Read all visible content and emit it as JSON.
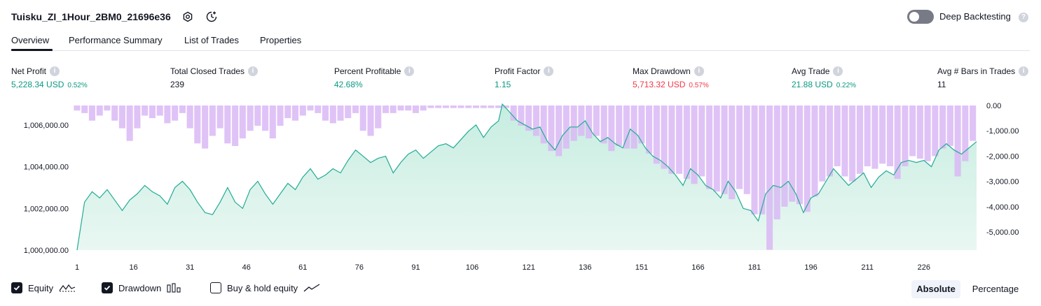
{
  "header": {
    "strategy_title": "Tuisku_ZI_1Hour_2BM0_21696e36",
    "icons": [
      "gear-icon",
      "replay-icon"
    ],
    "deep_backtesting": {
      "label": "Deep Backtesting",
      "enabled": false
    }
  },
  "tabs": [
    {
      "label": "Overview",
      "active": true
    },
    {
      "label": "Performance Summary",
      "active": false
    },
    {
      "label": "List of Trades",
      "active": false
    },
    {
      "label": "Properties",
      "active": false
    }
  ],
  "metrics": [
    {
      "label": "Net Profit",
      "value": "5,228.34 USD",
      "sub": "0.52%",
      "tone": "pos"
    },
    {
      "label": "Total Closed Trades",
      "value": "239",
      "sub": "",
      "tone": "neu"
    },
    {
      "label": "Percent Profitable",
      "value": "42.68%",
      "sub": "",
      "tone": "pos"
    },
    {
      "label": "Profit Factor",
      "value": "1.15",
      "sub": "",
      "tone": "pos"
    },
    {
      "label": "Max Drawdown",
      "value": "5,713.32 USD",
      "sub": "0.57%",
      "tone": "neg"
    },
    {
      "label": "Avg Trade",
      "value": "21.88 USD",
      "sub": "0.22%",
      "tone": "pos"
    },
    {
      "label": "Avg # Bars in Trades",
      "value": "11",
      "sub": "",
      "tone": "neu"
    }
  ],
  "legend": {
    "equity": {
      "label": "Equity",
      "checked": true
    },
    "drawdown": {
      "label": "Drawdown",
      "checked": true
    },
    "buy_hold": {
      "label": "Buy & hold equity",
      "checked": false
    }
  },
  "scale_toggle": {
    "absolute": "Absolute",
    "percentage": "Percentage",
    "selected": "absolute"
  },
  "colors": {
    "equity_line": "#22ab94",
    "equity_fill": "#d4f2ea",
    "drawdown_bar": "#d9b8f5",
    "text": "#131722",
    "positive": "#089981",
    "negative": "#f23645"
  },
  "chart_data": {
    "type": "line+bar",
    "x_ticks": [
      "1",
      "16",
      "31",
      "46",
      "61",
      "76",
      "91",
      "106",
      "121",
      "136",
      "151",
      "166",
      "181",
      "196",
      "211",
      "226"
    ],
    "x_range": [
      1,
      240
    ],
    "left_axis": {
      "ticks": [
        "1,000,000.00",
        "1,002,000.00",
        "1,004,000.00",
        "1,006,000.00"
      ],
      "range": [
        1000000,
        1007200
      ]
    },
    "right_axis": {
      "ticks": [
        "0.00",
        "-1,000.00",
        "-2,000.00",
        "-3,000.00",
        "-4,000.00",
        "-5,000.00"
      ],
      "range": [
        -5713,
        0
      ]
    },
    "series": [
      {
        "name": "Equity",
        "axis": "left",
        "points": [
          [
            1,
            1000000
          ],
          [
            3,
            1002300
          ],
          [
            5,
            1002800
          ],
          [
            7,
            1002500
          ],
          [
            9,
            1002900
          ],
          [
            11,
            1002400
          ],
          [
            13,
            1001900
          ],
          [
            15,
            1002400
          ],
          [
            17,
            1002700
          ],
          [
            19,
            1003100
          ],
          [
            21,
            1002800
          ],
          [
            23,
            1002600
          ],
          [
            25,
            1002200
          ],
          [
            27,
            1003000
          ],
          [
            29,
            1003300
          ],
          [
            31,
            1002900
          ],
          [
            33,
            1002300
          ],
          [
            35,
            1001800
          ],
          [
            37,
            1001700
          ],
          [
            39,
            1002300
          ],
          [
            41,
            1003000
          ],
          [
            43,
            1002300
          ],
          [
            45,
            1002000
          ],
          [
            47,
            1002900
          ],
          [
            49,
            1003300
          ],
          [
            51,
            1002700
          ],
          [
            53,
            1002200
          ],
          [
            55,
            1002700
          ],
          [
            57,
            1003200
          ],
          [
            59,
            1002900
          ],
          [
            61,
            1003500
          ],
          [
            63,
            1003900
          ],
          [
            65,
            1003400
          ],
          [
            67,
            1003600
          ],
          [
            69,
            1003900
          ],
          [
            71,
            1003700
          ],
          [
            73,
            1004300
          ],
          [
            75,
            1004800
          ],
          [
            77,
            1004500
          ],
          [
            79,
            1004200
          ],
          [
            81,
            1004400
          ],
          [
            83,
            1004500
          ],
          [
            85,
            1003700
          ],
          [
            87,
            1004200
          ],
          [
            89,
            1004600
          ],
          [
            91,
            1004800
          ],
          [
            93,
            1004400
          ],
          [
            95,
            1004700
          ],
          [
            97,
            1005000
          ],
          [
            99,
            1005100
          ],
          [
            101,
            1004900
          ],
          [
            103,
            1005300
          ],
          [
            105,
            1005700
          ],
          [
            107,
            1006000
          ],
          [
            109,
            1005400
          ],
          [
            111,
            1005900
          ],
          [
            113,
            1006200
          ],
          [
            114,
            1007000
          ],
          [
            116,
            1006600
          ],
          [
            118,
            1006200
          ],
          [
            120,
            1006000
          ],
          [
            122,
            1005800
          ],
          [
            124,
            1005900
          ],
          [
            126,
            1005200
          ],
          [
            128,
            1004800
          ],
          [
            130,
            1005500
          ],
          [
            132,
            1005900
          ],
          [
            134,
            1005900
          ],
          [
            136,
            1006200
          ],
          [
            138,
            1005600
          ],
          [
            140,
            1005200
          ],
          [
            142,
            1005400
          ],
          [
            144,
            1005100
          ],
          [
            146,
            1004900
          ],
          [
            148,
            1005800
          ],
          [
            150,
            1005500
          ],
          [
            152,
            1004900
          ],
          [
            154,
            1004500
          ],
          [
            156,
            1004300
          ],
          [
            158,
            1004000
          ],
          [
            160,
            1003600
          ],
          [
            162,
            1003100
          ],
          [
            164,
            1003900
          ],
          [
            166,
            1003600
          ],
          [
            168,
            1003100
          ],
          [
            170,
            1002900
          ],
          [
            172,
            1002500
          ],
          [
            174,
            1003300
          ],
          [
            176,
            1002800
          ],
          [
            178,
            1002000
          ],
          [
            180,
            1001900
          ],
          [
            182,
            1001400
          ],
          [
            184,
            1002700
          ],
          [
            186,
            1003100
          ],
          [
            188,
            1003000
          ],
          [
            190,
            1003300
          ],
          [
            192,
            1002700
          ],
          [
            194,
            1001800
          ],
          [
            196,
            1002500
          ],
          [
            198,
            1002700
          ],
          [
            200,
            1003300
          ],
          [
            202,
            1003900
          ],
          [
            204,
            1003500
          ],
          [
            206,
            1003100
          ],
          [
            208,
            1003400
          ],
          [
            210,
            1003700
          ],
          [
            212,
            1003000
          ],
          [
            214,
            1003500
          ],
          [
            216,
            1003800
          ],
          [
            218,
            1003600
          ],
          [
            220,
            1004200
          ],
          [
            222,
            1004300
          ],
          [
            224,
            1004200
          ],
          [
            226,
            1004300
          ],
          [
            228,
            1004000
          ],
          [
            230,
            1004800
          ],
          [
            232,
            1005100
          ],
          [
            234,
            1004800
          ],
          [
            236,
            1004600
          ],
          [
            238,
            1004900
          ],
          [
            240,
            1005200
          ]
        ]
      },
      {
        "name": "Drawdown",
        "axis": "right",
        "points": [
          [
            1,
            -200
          ],
          [
            3,
            -300
          ],
          [
            5,
            -600
          ],
          [
            7,
            -400
          ],
          [
            9,
            -200
          ],
          [
            11,
            -600
          ],
          [
            13,
            -900
          ],
          [
            15,
            -1400
          ],
          [
            17,
            -900
          ],
          [
            19,
            -400
          ],
          [
            21,
            -500
          ],
          [
            23,
            -400
          ],
          [
            25,
            -700
          ],
          [
            27,
            -600
          ],
          [
            29,
            -300
          ],
          [
            31,
            -900
          ],
          [
            33,
            -1500
          ],
          [
            35,
            -1700
          ],
          [
            37,
            -1200
          ],
          [
            39,
            -900
          ],
          [
            41,
            -1500
          ],
          [
            43,
            -1600
          ],
          [
            45,
            -1300
          ],
          [
            47,
            -1000
          ],
          [
            49,
            -800
          ],
          [
            51,
            -1000
          ],
          [
            53,
            -1300
          ],
          [
            55,
            -800
          ],
          [
            57,
            -500
          ],
          [
            59,
            -600
          ],
          [
            61,
            -400
          ],
          [
            63,
            -200
          ],
          [
            65,
            -300
          ],
          [
            67,
            -600
          ],
          [
            69,
            -700
          ],
          [
            71,
            -600
          ],
          [
            73,
            -500
          ],
          [
            75,
            -300
          ],
          [
            77,
            -1000
          ],
          [
            79,
            -1200
          ],
          [
            81,
            -900
          ],
          [
            83,
            -300
          ],
          [
            85,
            -300
          ],
          [
            87,
            -200
          ],
          [
            89,
            -200
          ],
          [
            91,
            -300
          ],
          [
            93,
            -200
          ],
          [
            95,
            -100
          ],
          [
            97,
            -100
          ],
          [
            99,
            -100
          ],
          [
            101,
            -100
          ],
          [
            103,
            -100
          ],
          [
            105,
            -100
          ],
          [
            107,
            -100
          ],
          [
            109,
            -100
          ],
          [
            111,
            -100
          ],
          [
            113,
            -100
          ],
          [
            115,
            -100
          ],
          [
            117,
            -600
          ],
          [
            119,
            -800
          ],
          [
            121,
            -1000
          ],
          [
            123,
            -1200
          ],
          [
            125,
            -1500
          ],
          [
            127,
            -1800
          ],
          [
            129,
            -2000
          ],
          [
            131,
            -1700
          ],
          [
            133,
            -1400
          ],
          [
            135,
            -1200
          ],
          [
            137,
            -1300
          ],
          [
            139,
            -1200
          ],
          [
            141,
            -1500
          ],
          [
            143,
            -1800
          ],
          [
            145,
            -1600
          ],
          [
            147,
            -1700
          ],
          [
            149,
            -1700
          ],
          [
            151,
            -1500
          ],
          [
            153,
            -1900
          ],
          [
            155,
            -2300
          ],
          [
            157,
            -2500
          ],
          [
            159,
            -2700
          ],
          [
            161,
            -2700
          ],
          [
            163,
            -2900
          ],
          [
            165,
            -3100
          ],
          [
            167,
            -2800
          ],
          [
            169,
            -3300
          ],
          [
            171,
            -3400
          ],
          [
            173,
            -3500
          ],
          [
            175,
            -3700
          ],
          [
            177,
            -3300
          ],
          [
            179,
            -3500
          ],
          [
            181,
            -4300
          ],
          [
            183,
            -4300
          ],
          [
            185,
            -5700
          ],
          [
            187,
            -4500
          ],
          [
            189,
            -4000
          ],
          [
            191,
            -3800
          ],
          [
            193,
            -3900
          ],
          [
            195,
            -4200
          ],
          [
            197,
            -3600
          ],
          [
            199,
            -3000
          ],
          [
            201,
            -2800
          ],
          [
            203,
            -2400
          ],
          [
            205,
            -2800
          ],
          [
            207,
            -3000
          ],
          [
            209,
            -2700
          ],
          [
            211,
            -2400
          ],
          [
            213,
            -2500
          ],
          [
            215,
            -2300
          ],
          [
            217,
            -2400
          ],
          [
            219,
            -2900
          ],
          [
            221,
            -2400
          ],
          [
            223,
            -2000
          ],
          [
            225,
            -2100
          ],
          [
            227,
            -2200
          ],
          [
            229,
            -2000
          ],
          [
            231,
            -1700
          ],
          [
            233,
            -1600
          ],
          [
            235,
            -2800
          ],
          [
            237,
            -2200
          ],
          [
            239,
            -1400
          ]
        ]
      }
    ]
  }
}
